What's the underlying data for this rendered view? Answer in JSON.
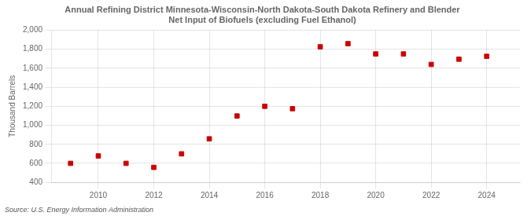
{
  "chart_data": {
    "type": "scatter",
    "title": "Annual Refining District Minnesota-Wisconsin-North Dakota-South Dakota Refinery and Blender\nNet Input of Biofuels (excluding Fuel Ethanol)",
    "ylabel": "Thousand Barrels",
    "annotation": "Source: U.S. Energy Information Administration",
    "x": [
      2009,
      2010,
      2011,
      2012,
      2013,
      2014,
      2015,
      2016,
      2017,
      2018,
      2019,
      2020,
      2021,
      2022,
      2023,
      2024
    ],
    "values": [
      600,
      678,
      600,
      558,
      700,
      858,
      1098,
      1200,
      1175,
      1825,
      1858,
      1750,
      1750,
      1640,
      1695,
      1725
    ],
    "color": "#cc0000",
    "marker": "square",
    "xlim": [
      2008.3,
      2025.2
    ],
    "xticks": [
      2010,
      2012,
      2014,
      2016,
      2018,
      2020,
      2022,
      2024
    ],
    "ylim": [
      400,
      2000
    ],
    "yticks": [
      400,
      600,
      800,
      {
        "value": 1000,
        "label": "1,000"
      },
      {
        "value": 1200,
        "label": "1,200"
      },
      {
        "value": 1400,
        "label": "1,400"
      },
      {
        "value": 1600,
        "label": "1,600"
      },
      {
        "value": 1800,
        "label": "1,800"
      },
      {
        "value": 2000,
        "label": "2,000"
      }
    ],
    "grid": true
  }
}
